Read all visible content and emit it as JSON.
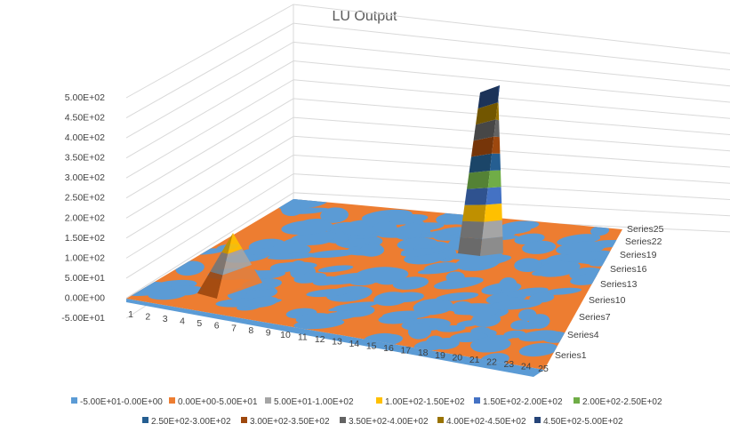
{
  "chart_data": {
    "type": "surface",
    "title": "LU Output",
    "z_ticks": [
      "5.00E+02",
      "4.50E+02",
      "4.00E+02",
      "3.50E+02",
      "3.00E+02",
      "2.50E+02",
      "2.00E+02",
      "1.50E+02",
      "1.00E+02",
      "5.00E+01",
      "0.00E+00",
      "-5.00E+01"
    ],
    "zlim": [
      -50,
      500
    ],
    "x_categories": [
      "1",
      "2",
      "3",
      "4",
      "5",
      "6",
      "7",
      "8",
      "9",
      "10",
      "11",
      "12",
      "13",
      "14",
      "15",
      "16",
      "17",
      "18",
      "19",
      "20",
      "21",
      "22",
      "23",
      "24",
      "25"
    ],
    "series_labels_shown": [
      "Series25",
      "Series22",
      "Series19",
      "Series16",
      "Series13",
      "Series10",
      "Series7",
      "Series4",
      "Series1"
    ],
    "series_count": 25,
    "surface_summary": {
      "baseline_range": [
        -50,
        50
      ],
      "peaks": [
        {
          "x_category": "7",
          "series": "Series4",
          "height": 150
        },
        {
          "x_category": "24",
          "series": "Series22",
          "height": 500
        }
      ]
    },
    "legend": [
      {
        "label": "-5.00E+01-0.00E+00",
        "color": "#5b9bd5"
      },
      {
        "label": "0.00E+00-5.00E+01",
        "color": "#ed7d31"
      },
      {
        "label": "5.00E+01-1.00E+02",
        "color": "#a5a5a5"
      },
      {
        "label": "1.00E+02-1.50E+02",
        "color": "#ffc000"
      },
      {
        "label": "1.50E+02-2.00E+02",
        "color": "#4472c4"
      },
      {
        "label": "2.00E+02-2.50E+02",
        "color": "#70ad47"
      },
      {
        "label": "2.50E+02-3.00E+02",
        "color": "#255e91"
      },
      {
        "label": "3.00E+02-3.50E+02",
        "color": "#9e480e"
      },
      {
        "label": "3.50E+02-4.00E+02",
        "color": "#636363"
      },
      {
        "label": "4.00E+02-4.50E+02",
        "color": "#997300"
      },
      {
        "label": "4.50E+02-5.00E+02",
        "color": "#264478"
      }
    ],
    "gridlines": true,
    "legend_position": "bottom"
  }
}
